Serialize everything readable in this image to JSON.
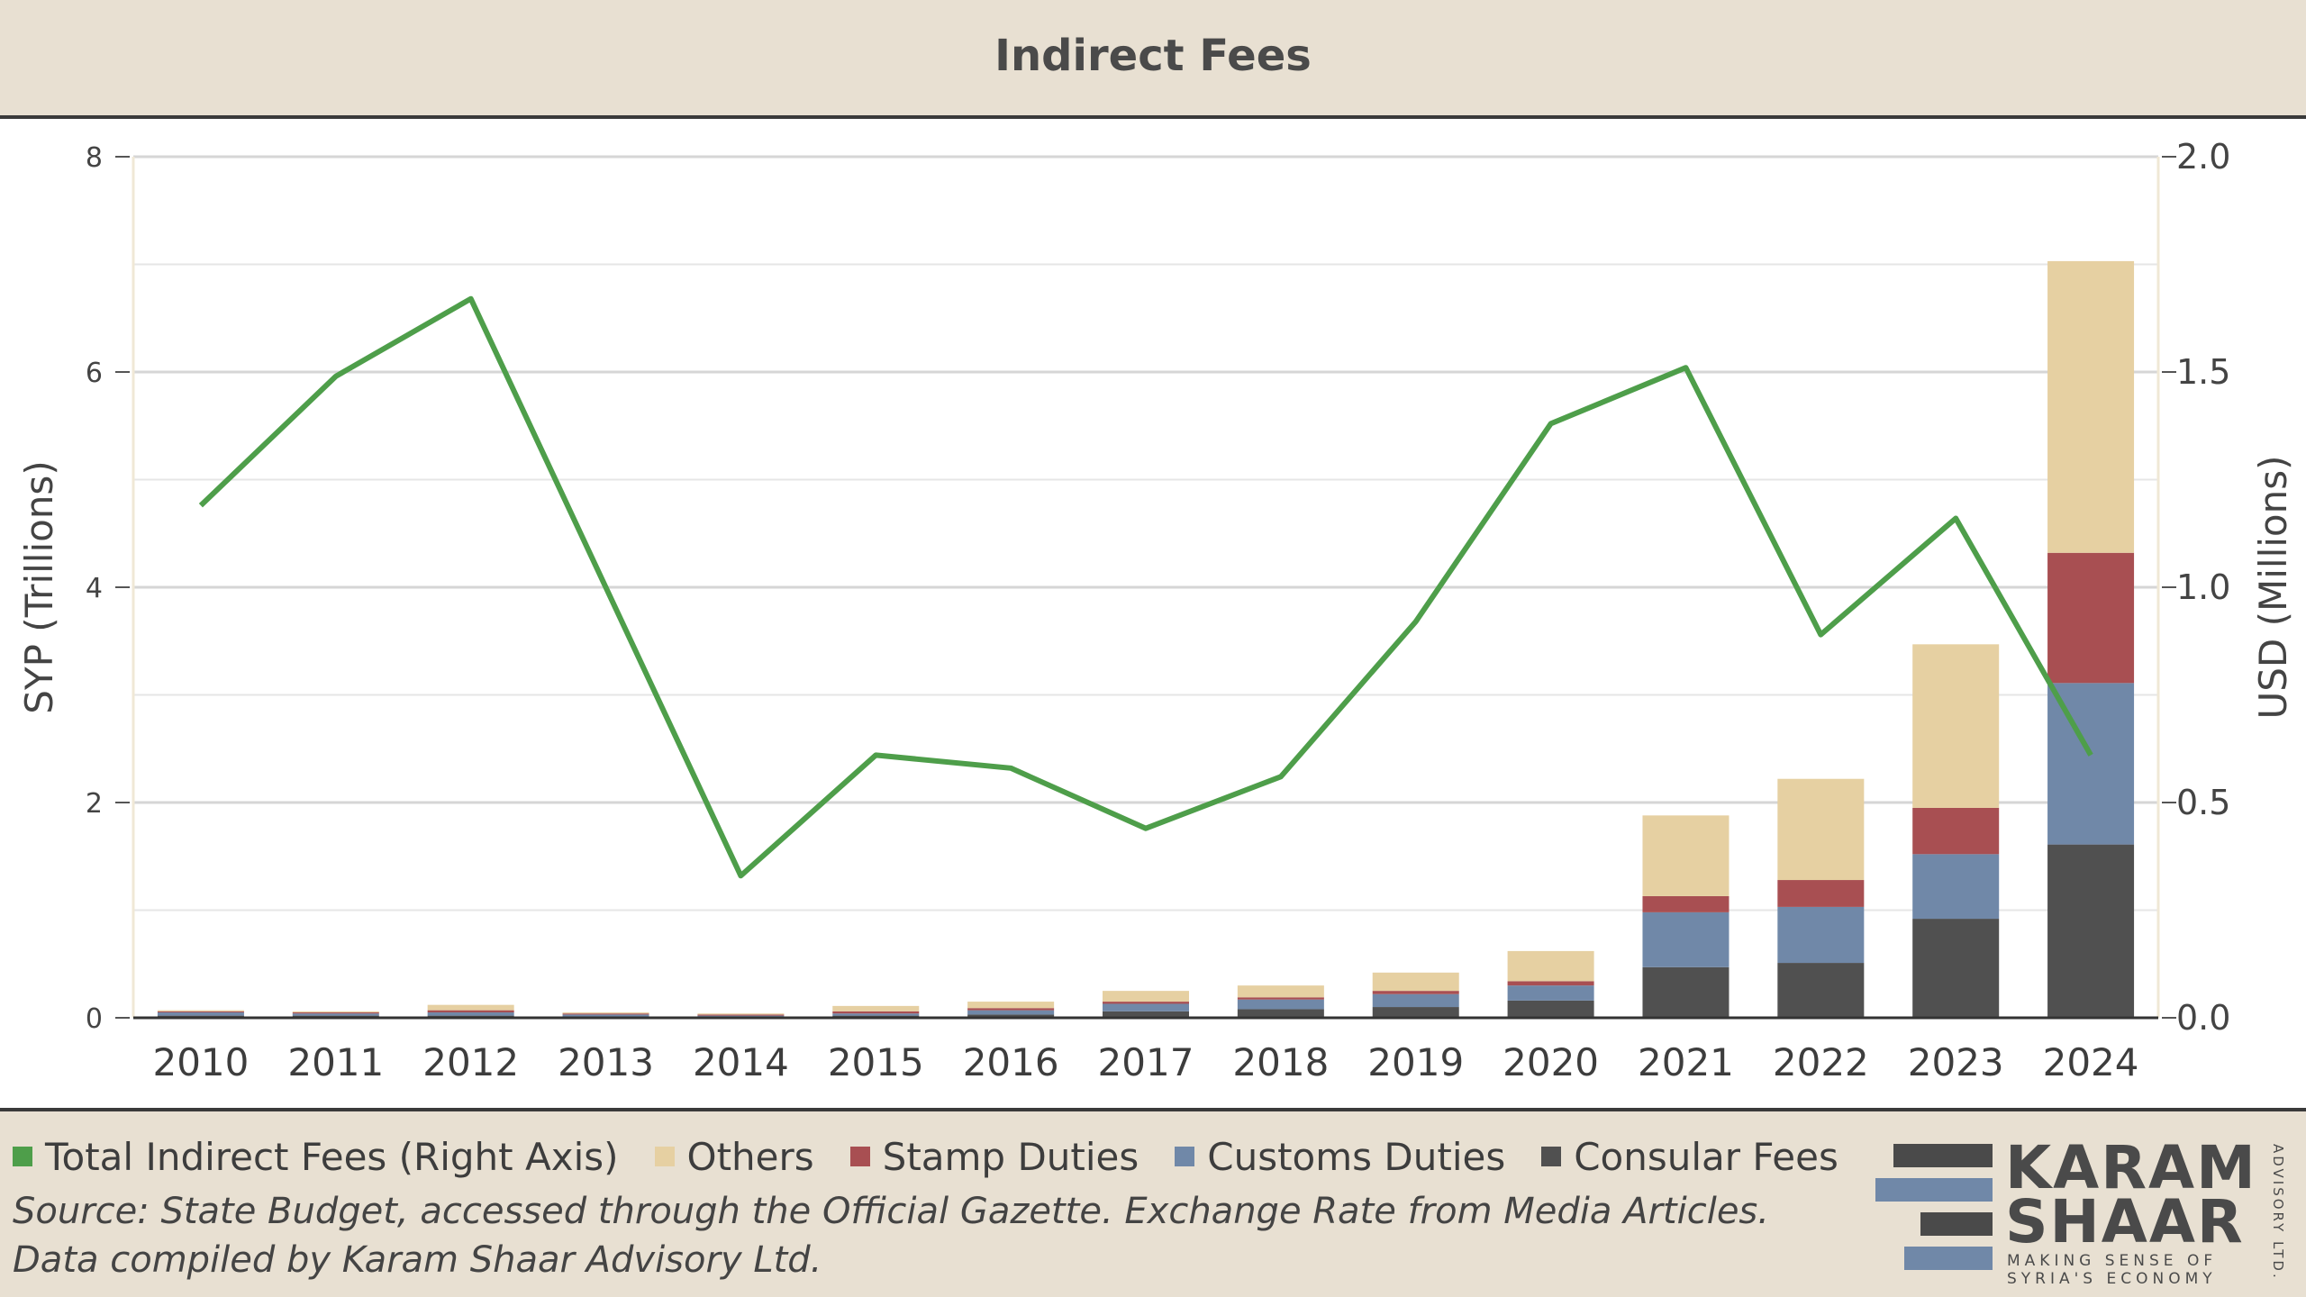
{
  "header": {
    "title": "Indirect Fees"
  },
  "chart_data": {
    "type": "bar",
    "stacked": true,
    "title": "Indirect Fees",
    "categories": [
      "2010",
      "2011",
      "2012",
      "2013",
      "2014",
      "2015",
      "2016",
      "2017",
      "2018",
      "2019",
      "2020",
      "2021",
      "2022",
      "2023",
      "2024"
    ],
    "ylabel": "SYP (Trillions)",
    "ylim": [
      0,
      8
    ],
    "yticks": [
      "0",
      "2",
      "4",
      "6",
      "8"
    ],
    "y2label": "USD (Millions)",
    "y2lim": [
      0,
      2.0
    ],
    "y2ticks": [
      "0.0",
      "0.5",
      "1.0",
      "1.5",
      "2.0"
    ],
    "grid": true,
    "legend_position": "bottom",
    "series": [
      {
        "name": "Consular Fees",
        "axis": "left",
        "color": "#505050",
        "values": [
          0.02,
          0.02,
          0.02,
          0.01,
          0.01,
          0.02,
          0.03,
          0.06,
          0.08,
          0.1,
          0.16,
          0.47,
          0.51,
          0.92,
          1.61
        ]
      },
      {
        "name": "Customs Duties",
        "axis": "left",
        "color": "#7088a8",
        "values": [
          0.03,
          0.02,
          0.03,
          0.02,
          0.01,
          0.02,
          0.04,
          0.07,
          0.09,
          0.12,
          0.14,
          0.51,
          0.52,
          0.6,
          1.5
        ]
      },
      {
        "name": "Stamp Duties",
        "axis": "left",
        "color": "#a84f52",
        "values": [
          0.01,
          0.01,
          0.02,
          0.01,
          0.01,
          0.02,
          0.02,
          0.02,
          0.02,
          0.03,
          0.04,
          0.15,
          0.25,
          0.43,
          1.21
        ]
      },
      {
        "name": "Others",
        "axis": "left",
        "color": "#e6d0a2",
        "values": [
          0.01,
          0.01,
          0.05,
          0.01,
          0.01,
          0.05,
          0.06,
          0.1,
          0.11,
          0.17,
          0.28,
          0.75,
          0.94,
          1.52,
          2.71
        ]
      },
      {
        "name": "Total Indirect Fees (Right Axis)",
        "axis": "right",
        "type": "line",
        "color": "#4e9e4a",
        "values": [
          1.19,
          1.49,
          1.67,
          1.0,
          0.33,
          0.61,
          0.58,
          0.44,
          0.56,
          0.92,
          1.38,
          1.51,
          0.89,
          1.16,
          0.61
        ]
      }
    ]
  },
  "legend": {
    "items": [
      {
        "label": "Total Indirect Fees (Right Axis)",
        "color": "#4e9e4a"
      },
      {
        "label": "Others",
        "color": "#e6d0a2"
      },
      {
        "label": "Stamp Duties",
        "color": "#a84f52"
      },
      {
        "label": "Customs Duties",
        "color": "#7088a8"
      },
      {
        "label": "Consular Fees",
        "color": "#505050"
      }
    ]
  },
  "source": "Source: State Budget, accessed through the Official Gazette. Exchange Rate from Media Articles. Data compiled by Karam Shaar Advisory Ltd.",
  "logo": {
    "line1": "KARAM",
    "line2": "SHAAR",
    "tagline1": "MAKING SENSE OF",
    "tagline2": "SYRIA'S ECONOMY",
    "side": "ADVISORY LTD.",
    "colors": [
      "#4a4a4a",
      "#7088a8"
    ]
  }
}
